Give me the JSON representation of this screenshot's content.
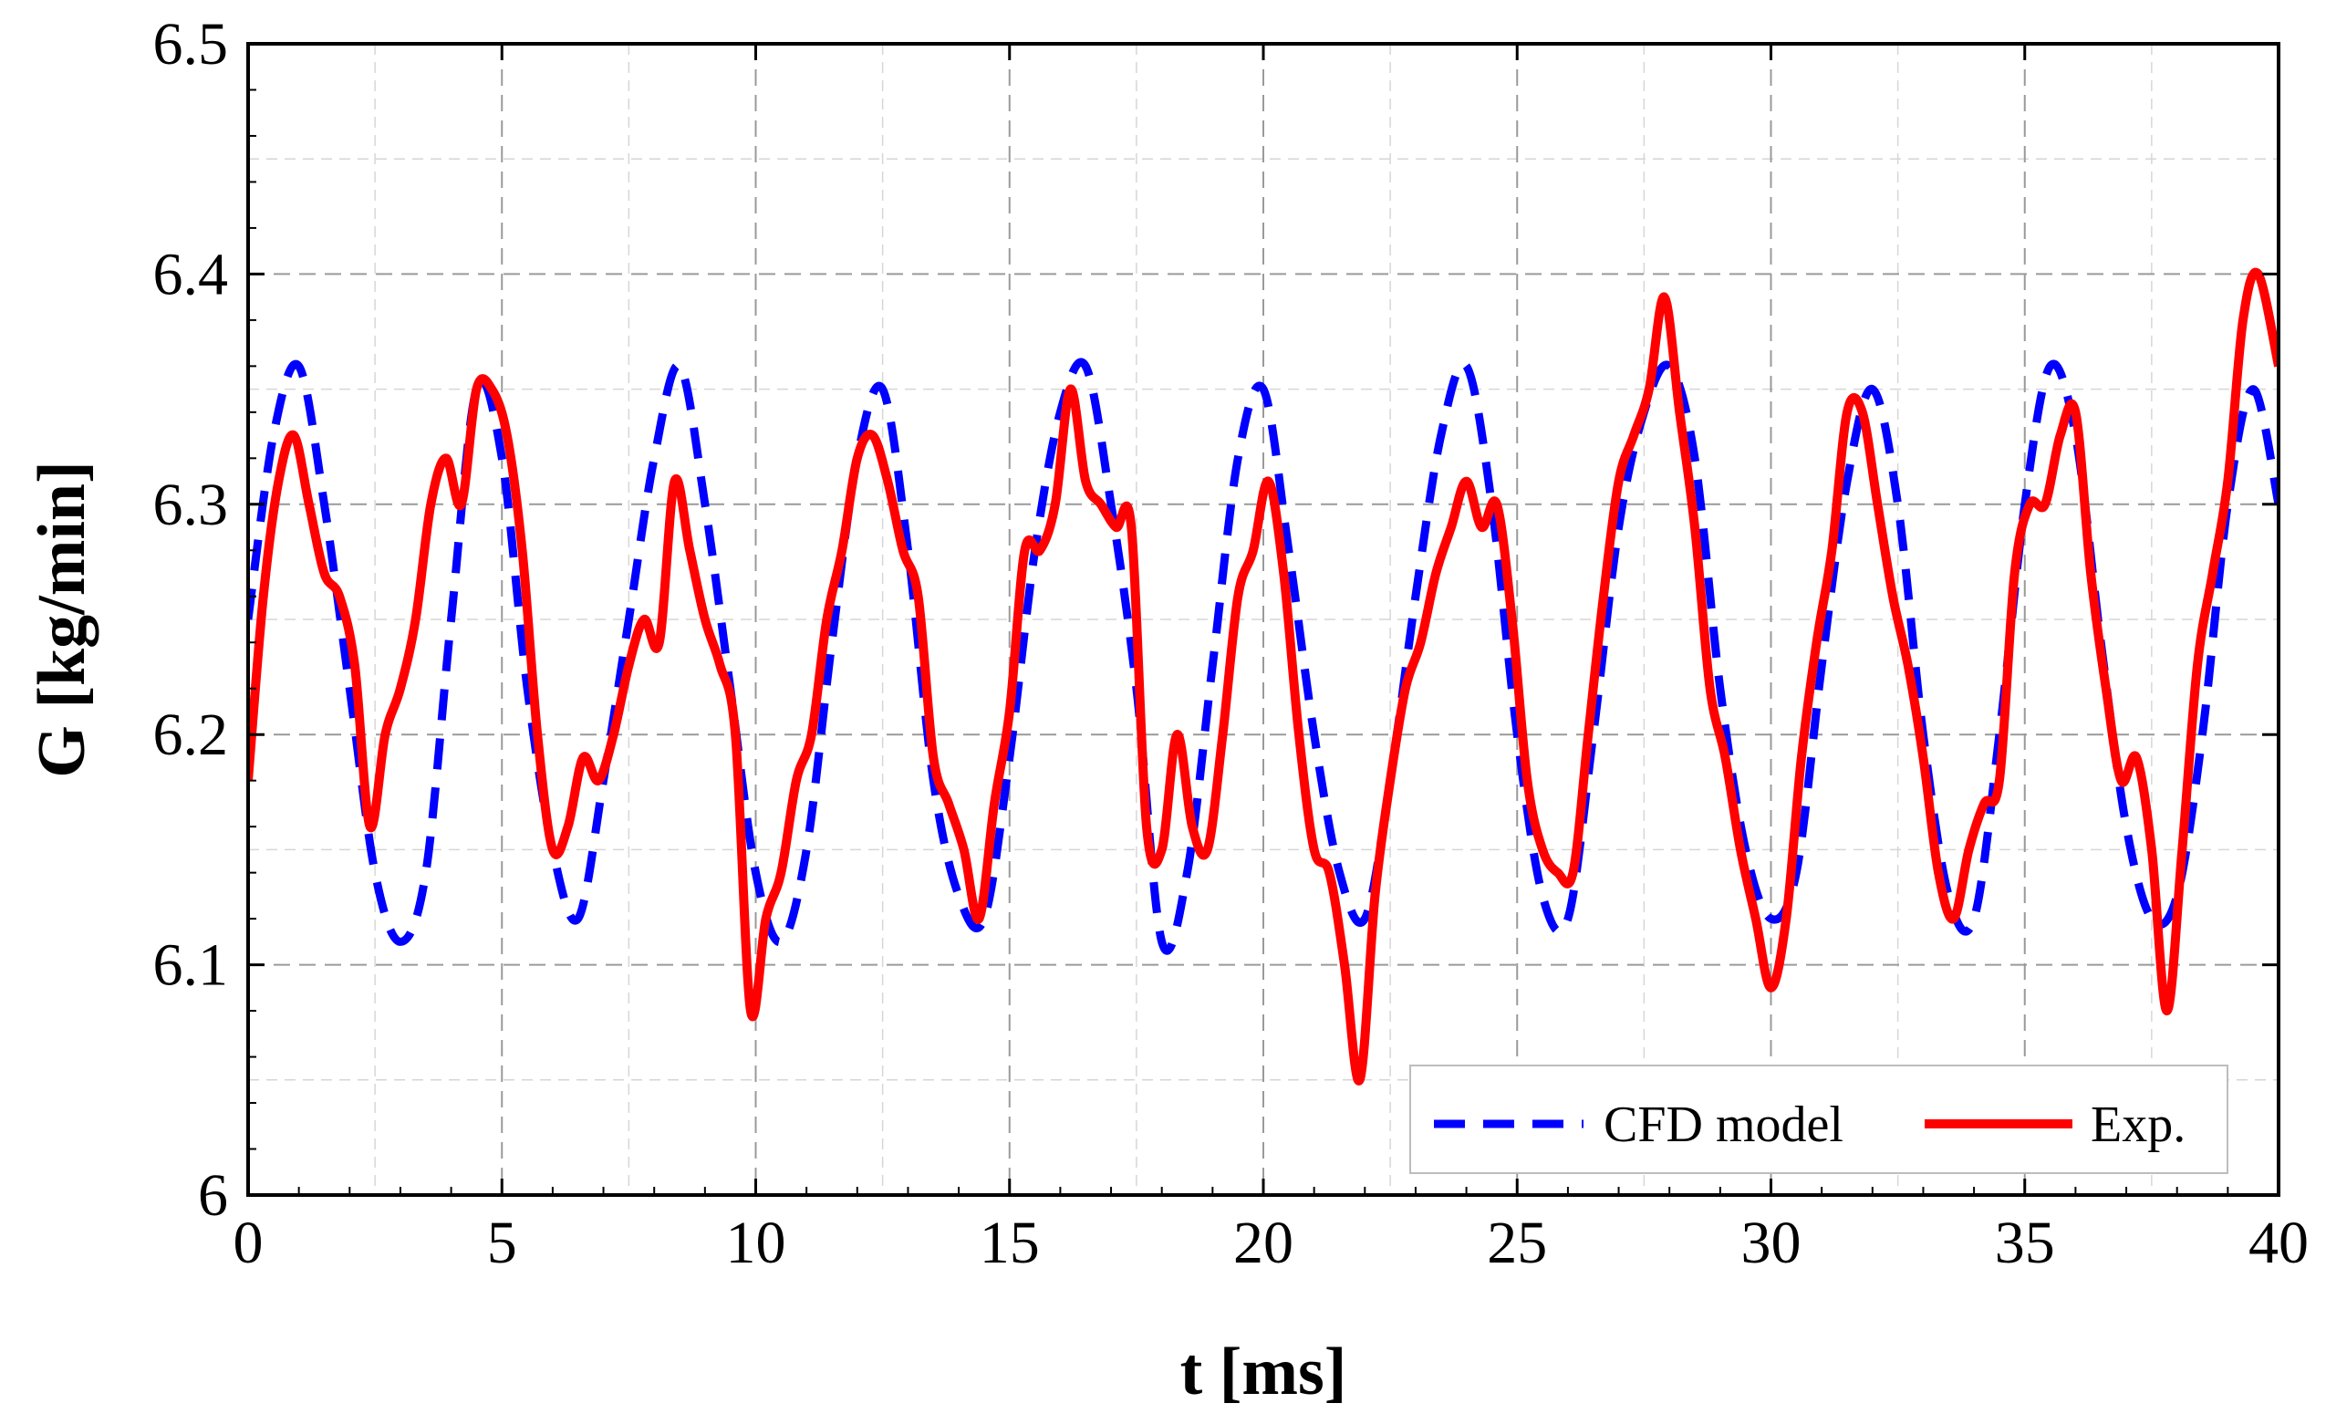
{
  "chart_data": {
    "type": "line",
    "title": "",
    "xlabel": "t [ms]",
    "ylabel": "G [kg/min]",
    "xlim": [
      0,
      40
    ],
    "ylim": [
      6.0,
      6.5
    ],
    "xticks": [
      0,
      5,
      10,
      15,
      20,
      25,
      30,
      35,
      40
    ],
    "yticks": [
      6.0,
      6.1,
      6.2,
      6.3,
      6.4,
      6.5
    ],
    "xtick_labels": [
      "0",
      "5",
      "10",
      "15",
      "20",
      "25",
      "30",
      "35",
      "40"
    ],
    "ytick_labels": [
      "6",
      "6.1",
      "6.2",
      "6.3",
      "6.4",
      "6.5"
    ],
    "grid": true,
    "legend_position": "bottom-right",
    "series": [
      {
        "name": "CFD model",
        "color": "#0000ff",
        "style": "dashed",
        "x": [
          0,
          0.5,
          1.0,
          1.5,
          2.0,
          2.5,
          3.0,
          3.5,
          4.0,
          4.5,
          5.0,
          5.5,
          6.0,
          6.5,
          7.0,
          7.5,
          8.0,
          8.5,
          9.0,
          9.5,
          10.0,
          10.5,
          11.0,
          11.5,
          12.0,
          12.5,
          13.0,
          13.5,
          14.0,
          14.5,
          15.0,
          15.5,
          16.0,
          16.5,
          17.0,
          17.5,
          18.0,
          18.5,
          19.0,
          19.5,
          20.0,
          20.5,
          21.0,
          21.5,
          22.0,
          22.5,
          23.0,
          23.5,
          24.0,
          24.5,
          25.0,
          25.5,
          26.0,
          26.5,
          27.0,
          27.5,
          28.0,
          28.5,
          29.0,
          29.5,
          30.0,
          30.5,
          31.0,
          31.5,
          32.0,
          32.5,
          33.0,
          33.5,
          34.0,
          34.5,
          35.0,
          35.5,
          36.0,
          36.5,
          37.0,
          37.5,
          38.0,
          38.5,
          39.0,
          39.5,
          40.0
        ],
        "values": [
          6.25,
          6.33,
          6.36,
          6.3,
          6.22,
          6.14,
          6.11,
          6.14,
          6.25,
          6.35,
          6.32,
          6.22,
          6.15,
          6.12,
          6.18,
          6.25,
          6.32,
          6.36,
          6.3,
          6.22,
          6.14,
          6.11,
          6.15,
          6.24,
          6.32,
          6.35,
          6.28,
          6.18,
          6.13,
          6.12,
          6.19,
          6.28,
          6.34,
          6.36,
          6.3,
          6.22,
          6.11,
          6.14,
          6.23,
          6.32,
          6.35,
          6.28,
          6.2,
          6.14,
          6.12,
          6.18,
          6.26,
          6.33,
          6.36,
          6.3,
          6.2,
          6.13,
          6.12,
          6.2,
          6.29,
          6.34,
          6.36,
          6.32,
          6.22,
          6.15,
          6.12,
          6.14,
          6.23,
          6.31,
          6.35,
          6.3,
          6.2,
          6.13,
          6.12,
          6.2,
          6.3,
          6.36,
          6.33,
          6.24,
          6.16,
          6.12,
          6.13,
          6.2,
          6.3,
          6.35,
          6.3
        ]
      },
      {
        "name": "Exp.",
        "color": "#ff0000",
        "style": "solid",
        "x": [
          0,
          0.3,
          0.6,
          0.9,
          1.2,
          1.5,
          1.8,
          2.1,
          2.4,
          2.7,
          3.0,
          3.3,
          3.6,
          3.9,
          4.2,
          4.5,
          4.8,
          5.1,
          5.4,
          5.7,
          6.0,
          6.3,
          6.6,
          6.9,
          7.2,
          7.5,
          7.8,
          8.1,
          8.4,
          8.7,
          9.0,
          9.3,
          9.6,
          9.9,
          10.2,
          10.5,
          10.8,
          11.1,
          11.4,
          11.7,
          12.0,
          12.3,
          12.6,
          12.9,
          13.2,
          13.5,
          13.8,
          14.1,
          14.4,
          14.7,
          15.0,
          15.3,
          15.6,
          15.9,
          16.2,
          16.5,
          16.8,
          17.1,
          17.4,
          17.7,
          18.0,
          18.3,
          18.6,
          18.9,
          19.2,
          19.5,
          19.8,
          20.1,
          20.4,
          20.7,
          21.0,
          21.3,
          21.6,
          21.9,
          22.2,
          22.5,
          22.8,
          23.1,
          23.4,
          23.7,
          24.0,
          24.3,
          24.6,
          24.9,
          25.2,
          25.5,
          25.8,
          26.1,
          26.4,
          26.7,
          27.0,
          27.3,
          27.6,
          27.9,
          28.2,
          28.5,
          28.8,
          29.1,
          29.4,
          29.7,
          30.0,
          30.3,
          30.6,
          30.9,
          31.2,
          31.5,
          31.8,
          32.1,
          32.4,
          32.7,
          33.0,
          33.3,
          33.6,
          33.9,
          34.2,
          34.5,
          34.8,
          35.1,
          35.4,
          35.7,
          36.0,
          36.3,
          36.6,
          36.9,
          37.2,
          37.5,
          37.8,
          38.1,
          38.4,
          38.7,
          39.0,
          39.3,
          39.6,
          40.0
        ],
        "values": [
          6.18,
          6.26,
          6.31,
          6.33,
          6.3,
          6.27,
          6.26,
          6.23,
          6.16,
          6.2,
          6.22,
          6.25,
          6.3,
          6.32,
          6.3,
          6.35,
          6.35,
          6.33,
          6.28,
          6.2,
          6.15,
          6.16,
          6.19,
          6.18,
          6.2,
          6.23,
          6.25,
          6.24,
          6.31,
          6.28,
          6.25,
          6.23,
          6.2,
          6.08,
          6.12,
          6.14,
          6.18,
          6.2,
          6.25,
          6.28,
          6.32,
          6.33,
          6.31,
          6.28,
          6.26,
          6.19,
          6.17,
          6.15,
          6.12,
          6.17,
          6.21,
          6.28,
          6.28,
          6.3,
          6.35,
          6.31,
          6.3,
          6.29,
          6.29,
          6.16,
          6.15,
          6.2,
          6.16,
          6.15,
          6.2,
          6.26,
          6.28,
          6.31,
          6.27,
          6.2,
          6.15,
          6.14,
          6.1,
          6.05,
          6.13,
          6.18,
          6.22,
          6.24,
          6.27,
          6.29,
          6.31,
          6.29,
          6.3,
          6.25,
          6.18,
          6.15,
          6.14,
          6.14,
          6.2,
          6.26,
          6.31,
          6.33,
          6.35,
          6.39,
          6.34,
          6.29,
          6.22,
          6.19,
          6.15,
          6.12,
          6.09,
          6.12,
          6.19,
          6.24,
          6.28,
          6.34,
          6.34,
          6.3,
          6.26,
          6.23,
          6.19,
          6.14,
          6.12,
          6.15,
          6.17,
          6.18,
          6.27,
          6.3,
          6.3,
          6.33,
          6.34,
          6.27,
          6.22,
          6.18,
          6.19,
          6.15,
          6.08,
          6.15,
          6.23,
          6.27,
          6.31,
          6.38,
          6.4,
          6.36
        ]
      }
    ]
  }
}
